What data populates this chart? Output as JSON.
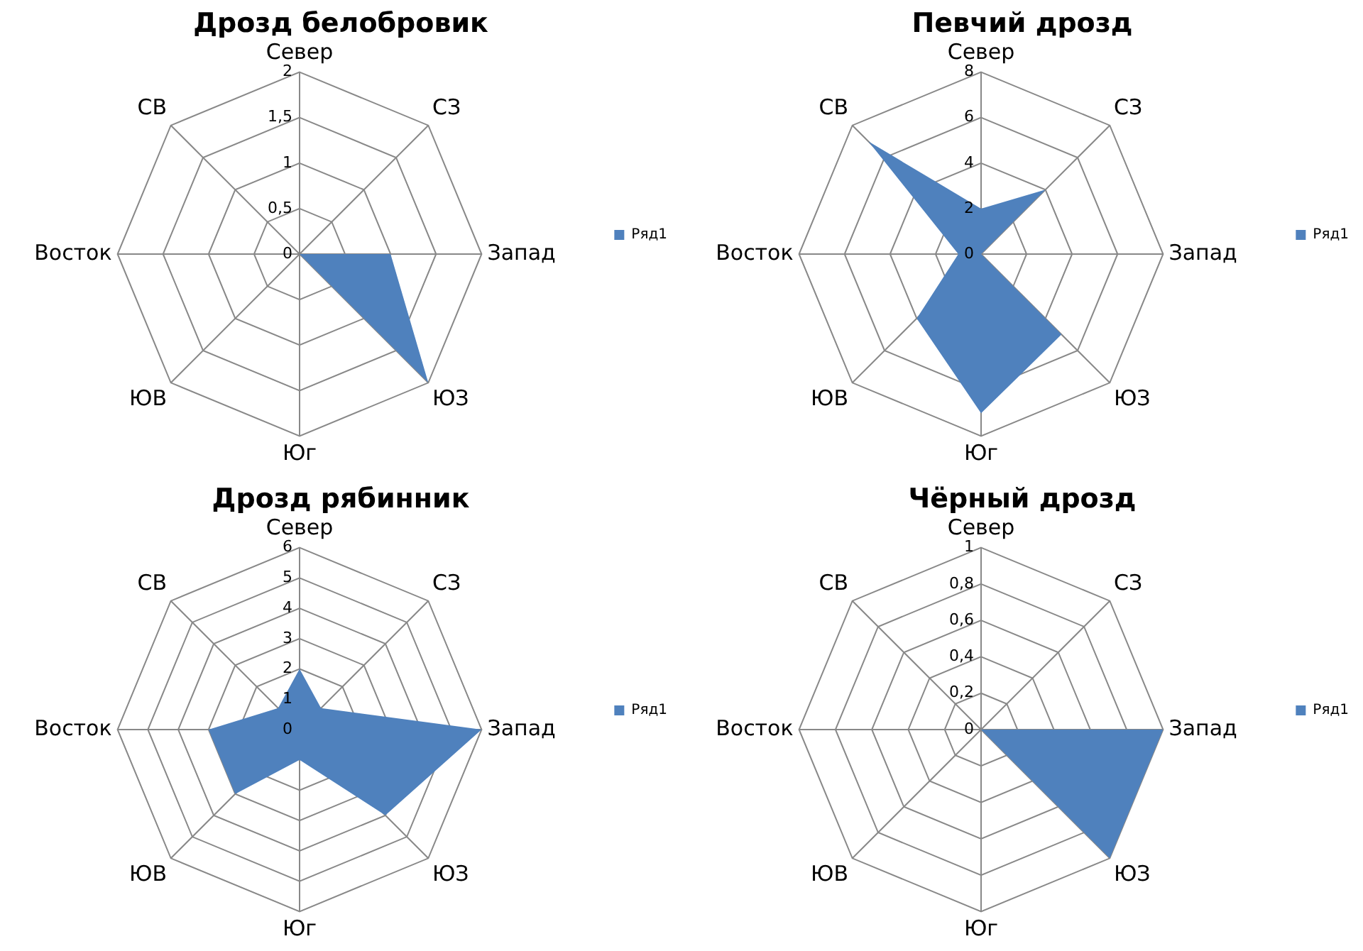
{
  "chart_data": [
    {
      "type": "radar",
      "title": "Дрозд белобровик",
      "categories": [
        "Север",
        "СЗ",
        "Запад",
        "ЮЗ",
        "Юг",
        "ЮВ",
        "Восток",
        "СВ"
      ],
      "series": [
        {
          "name": "Ряд1",
          "color": "#4f81bd",
          "values": [
            0,
            0,
            1,
            2,
            0,
            0,
            0,
            0
          ]
        }
      ],
      "ylim": [
        0,
        2
      ],
      "yticks": [
        0,
        {
          "value": 0.5,
          "label": "0,5"
        },
        1,
        {
          "value": 1.5,
          "label": "1,5"
        },
        2
      ],
      "legend": "right",
      "marker": "none",
      "grid": true
    },
    {
      "type": "radar",
      "title": "Певчий дрозд",
      "categories": [
        "Север",
        "СЗ",
        "Запад",
        "ЮЗ",
        "Юг",
        "ЮВ",
        "Восток",
        "СВ"
      ],
      "series": [
        {
          "name": "Ряд1",
          "color": "#4f81bd",
          "values": [
            2,
            4,
            0,
            5,
            7,
            4,
            1,
            7
          ]
        }
      ],
      "ylim": [
        0,
        8
      ],
      "yticks": [
        0,
        2,
        4,
        6,
        8
      ],
      "legend": "right",
      "marker": "none",
      "grid": true
    },
    {
      "type": "radar",
      "title": "Дрозд рябинник",
      "categories": [
        "Север",
        "СЗ",
        "Запад",
        "ЮЗ",
        "Юг",
        "ЮВ",
        "Восток",
        "СВ"
      ],
      "series": [
        {
          "name": "Ряд1",
          "color": "#4f81bd",
          "values": [
            2,
            1,
            6,
            4,
            1,
            3,
            3,
            1
          ]
        }
      ],
      "ylim": [
        0,
        6
      ],
      "yticks": [
        0,
        1,
        2,
        3,
        4,
        5,
        6
      ],
      "legend": "right",
      "marker": "none",
      "grid": true
    },
    {
      "type": "radar",
      "title": "Чёрный дрозд",
      "categories": [
        "Север",
        "СЗ",
        "Запад",
        "ЮЗ",
        "Юг",
        "ЮВ",
        "Восток",
        "СВ"
      ],
      "series": [
        {
          "name": "Ряд1",
          "color": "#4f81bd",
          "values": [
            0,
            0,
            1,
            1,
            0,
            0,
            0,
            0
          ]
        }
      ],
      "ylim": [
        0,
        1
      ],
      "yticks": [
        0,
        {
          "value": 0.2,
          "label": "0,2"
        },
        {
          "value": 0.4,
          "label": "0,4"
        },
        {
          "value": 0.6,
          "label": "0,6"
        },
        {
          "value": 0.8,
          "label": "0,8"
        },
        1
      ],
      "legend": "right",
      "marker": "none",
      "grid": true
    }
  ]
}
